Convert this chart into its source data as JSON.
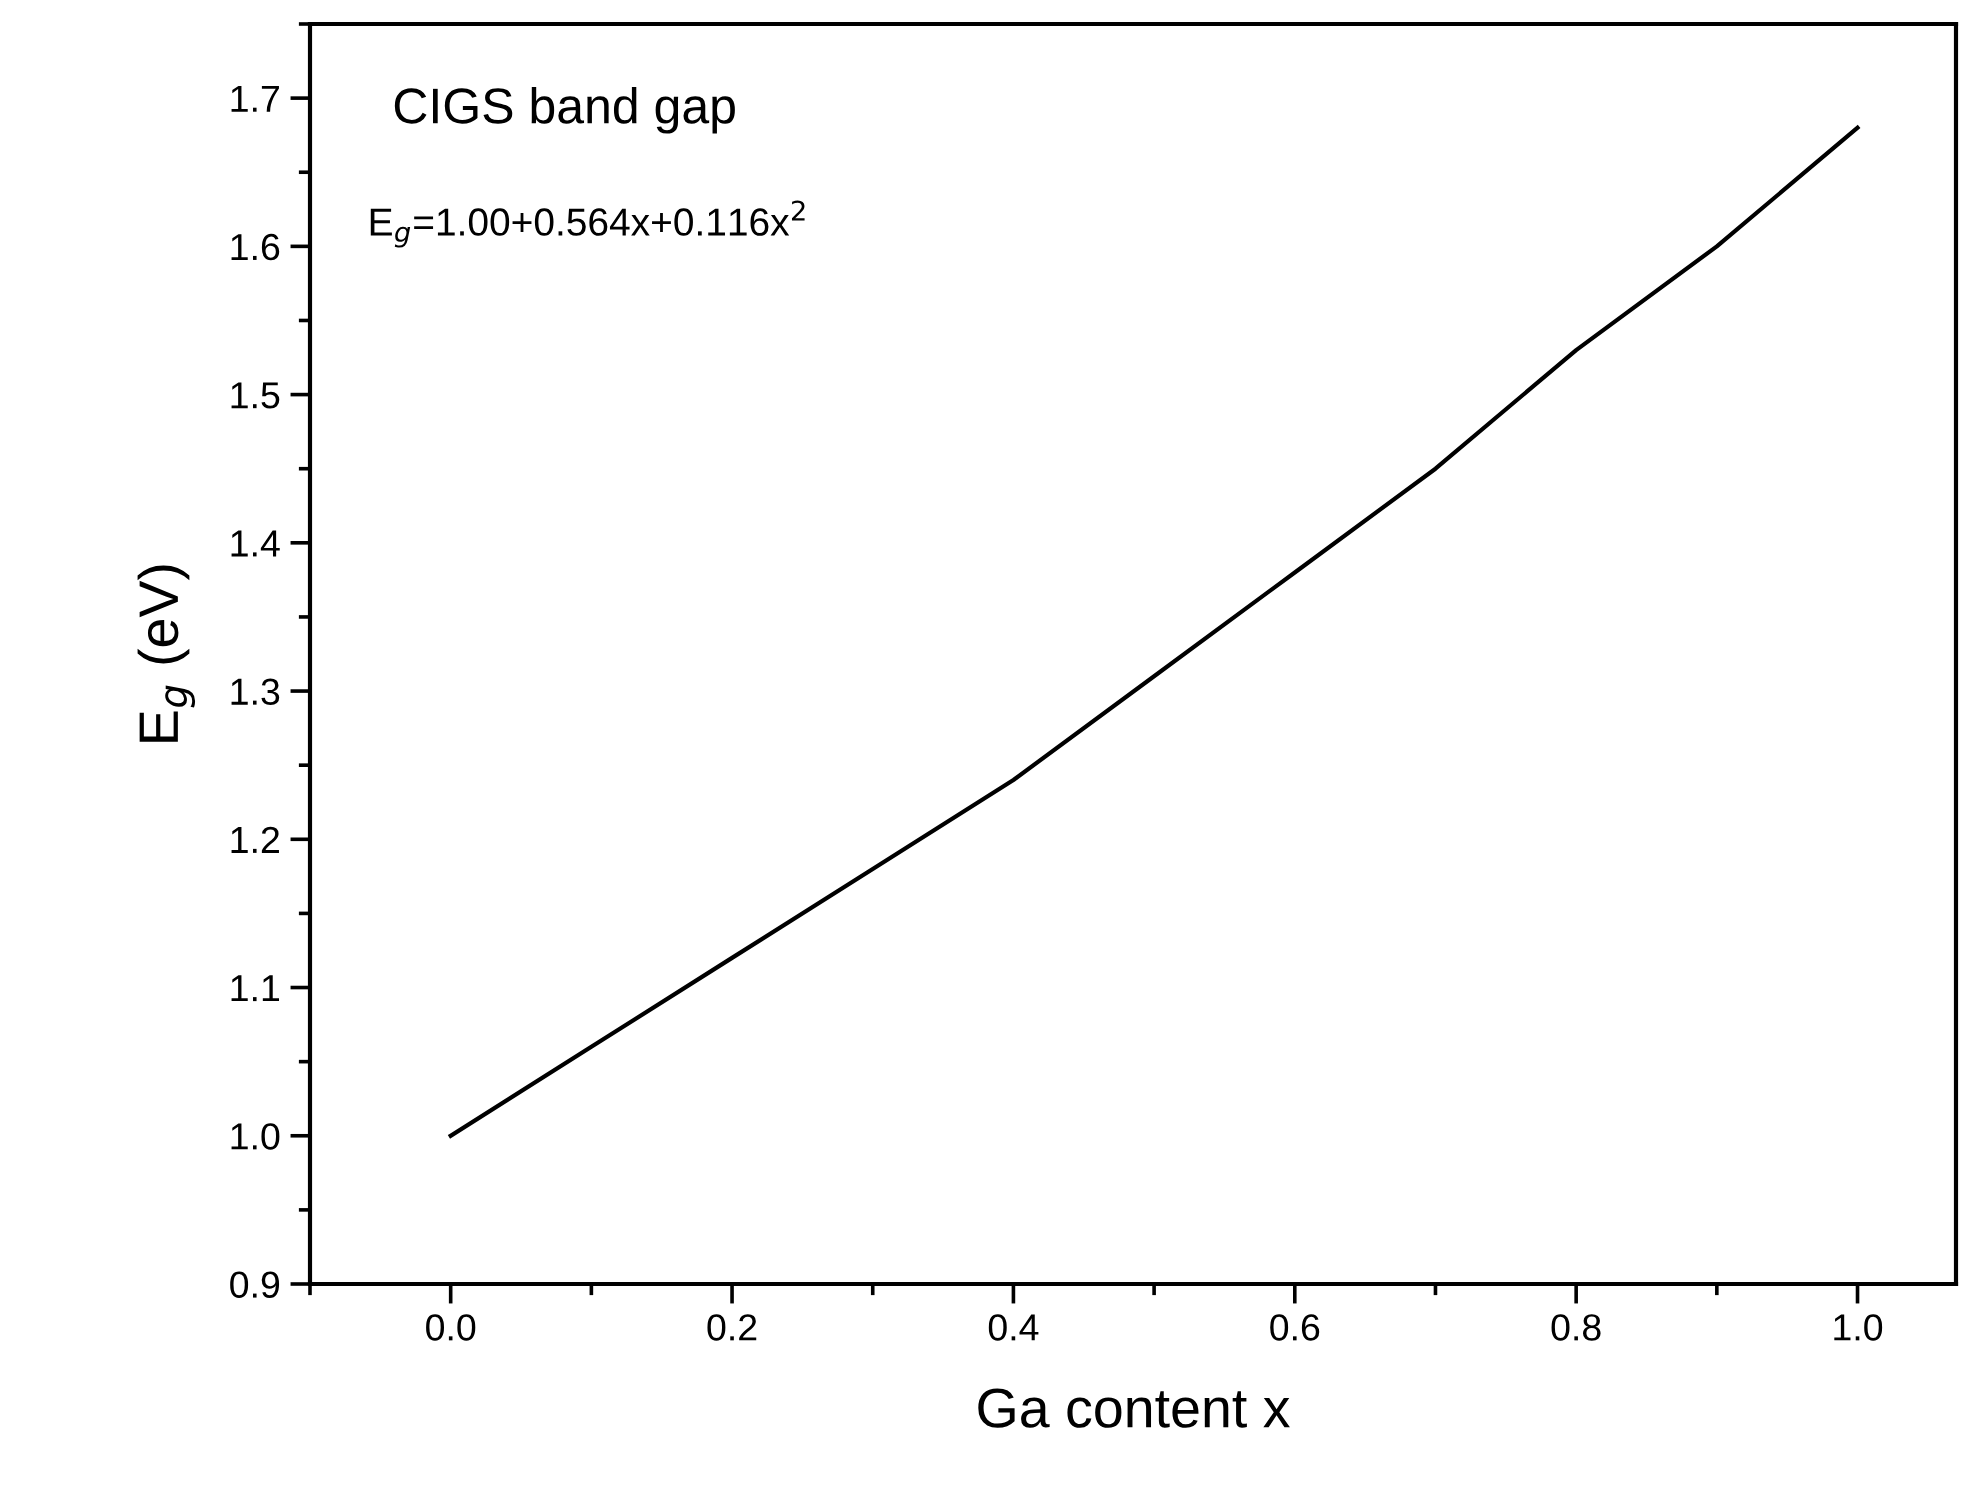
{
  "chart_data": {
    "type": "line",
    "xlabel": "Ga content x",
    "ylabel": "E$_{g}$ (eV)",
    "annotations": [
      "CIGS band gap",
      "E$_{g}$=1.00+0.564x+0.116x$^{2}$"
    ],
    "x": [
      0.0,
      0.1,
      0.2,
      0.3,
      0.4,
      0.5,
      0.6,
      0.7,
      0.8,
      0.9,
      1.0
    ],
    "series": [
      {
        "color": "#000000",
        "values": [
          1.0,
          1.06,
          1.12,
          1.18,
          1.24,
          1.31,
          1.38,
          1.45,
          1.53,
          1.6,
          1.68
        ]
      }
    ],
    "xlim": [
      -0.1,
      1.07
    ],
    "xticks": [
      {
        "value": 0.0,
        "label": "0.0"
      },
      0.2,
      0.4,
      0.6,
      0.8,
      {
        "value": 1.0,
        "label": "1.0"
      }
    ],
    "ylim": [
      0.9,
      1.75
    ],
    "yticks": [
      0.9,
      {
        "value": 1.0,
        "label": "1.0"
      },
      1.1,
      1.2,
      1.3,
      1.4,
      1.5,
      1.6,
      1.7
    ],
    "grid": false,
    "legend": false,
    "marker": "none",
    "line_style": "solid"
  }
}
